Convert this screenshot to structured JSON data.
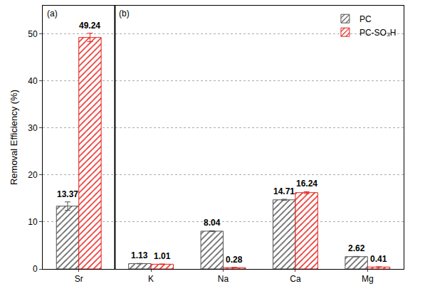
{
  "chart_data": {
    "type": "bar",
    "y_label": "Removal Efficiency (%)",
    "categories": [
      "Sr",
      "K",
      "Na",
      "Ca",
      "Mg"
    ],
    "series": [
      {
        "name": "PC",
        "color": "#555555",
        "values": [
          13.37,
          1.13,
          8.04,
          14.71,
          2.62
        ],
        "errors": [
          0.9,
          0.05,
          0.1,
          0.12,
          0.05
        ]
      },
      {
        "name": "PC-SO₃H",
        "color": "#e8201a",
        "values": [
          49.24,
          1.01,
          0.28,
          16.24,
          0.41
        ],
        "errors": [
          0.9,
          0.05,
          0.05,
          0.2,
          0.05
        ]
      }
    ],
    "ylim": [
      0,
      56
    ],
    "yticks": [
      0,
      10,
      20,
      30,
      40,
      50
    ],
    "grid": true,
    "legend": "upper right",
    "data_labels": true,
    "annotations": [
      {
        "text": "(a)",
        "category": "Sr"
      },
      {
        "text": "(b)",
        "category": "K"
      }
    ]
  }
}
